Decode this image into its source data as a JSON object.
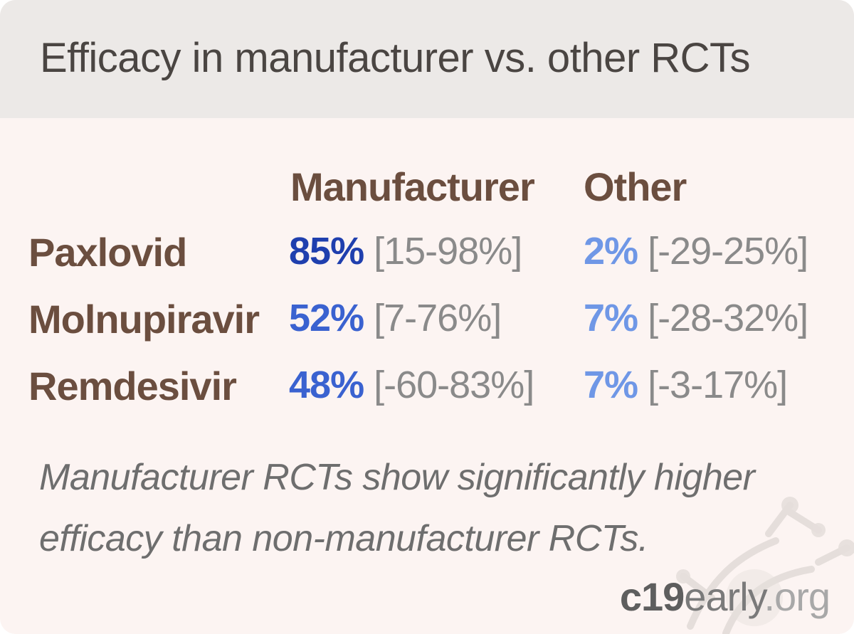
{
  "title": "Efficacy in manufacturer vs. other RCTs",
  "columns": {
    "manufacturer": "Manufacturer",
    "other": "Other"
  },
  "colors": {
    "header_bg": "#ece9e7",
    "card_bg": "#fcf4f2",
    "label": "#6b4e3f",
    "ci_gray": "#8a8a8a",
    "manufacturer_shades": [
      "#1f3fae",
      "#3a62d0",
      "#3a62d0"
    ],
    "other_shade": "#6f97e6"
  },
  "rows": [
    {
      "drug": "Paxlovid",
      "manufacturer": {
        "value": "85%",
        "ci": "[15-98%]"
      },
      "other": {
        "value": "2%",
        "ci": "[-29-25%]"
      }
    },
    {
      "drug": "Molnupiravir",
      "manufacturer": {
        "value": "52%",
        "ci": "[7-76%]"
      },
      "other": {
        "value": "7%",
        "ci": "[-28-32%]"
      }
    },
    {
      "drug": "Remdesivir",
      "manufacturer": {
        "value": "48%",
        "ci": "[-60-83%]"
      },
      "other": {
        "value": "7%",
        "ci": "[-3-17%]"
      }
    }
  ],
  "summary": "Manufacturer RCTs show significantly higher efficacy than non-manufacturer RCTs.",
  "brand": {
    "part1": "c19",
    "part2": "early",
    "part3": ".org"
  },
  "chart_data": {
    "type": "table",
    "title": "Efficacy in manufacturer vs. other RCTs",
    "columns": [
      "Manufacturer",
      "Other"
    ],
    "rows": [
      {
        "name": "Paxlovid",
        "manufacturer": 85,
        "manufacturer_ci": [
          15,
          98
        ],
        "other": 2,
        "other_ci": [
          -29,
          25
        ]
      },
      {
        "name": "Molnupiravir",
        "manufacturer": 52,
        "manufacturer_ci": [
          7,
          76
        ],
        "other": 7,
        "other_ci": [
          -28,
          32
        ]
      },
      {
        "name": "Remdesivir",
        "manufacturer": 48,
        "manufacturer_ci": [
          -60,
          83
        ],
        "other": 7,
        "other_ci": [
          -3,
          17
        ]
      }
    ]
  }
}
